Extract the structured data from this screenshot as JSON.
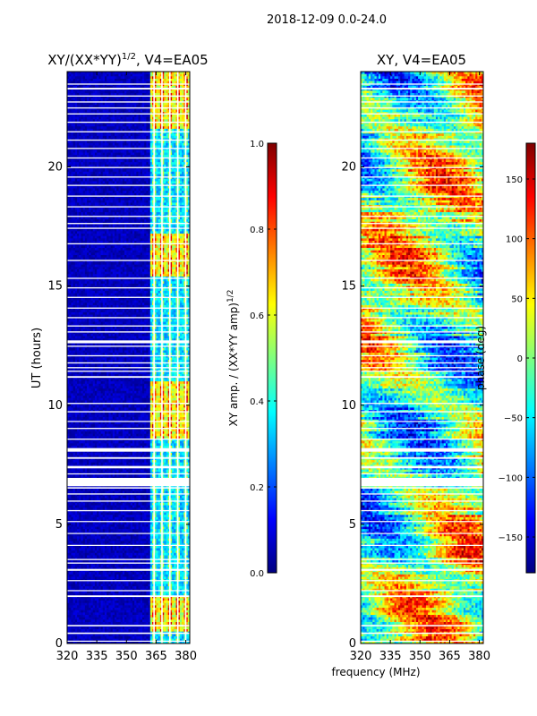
{
  "suptitle": "2018-12-09 0.0-24.0",
  "shared_xlabel": "frequency (MHz)",
  "colors": {
    "jet": [
      "#00007f",
      "#0000ff",
      "#007fff",
      "#00ffff",
      "#7fff7f",
      "#ffff00",
      "#ff7f00",
      "#ff0000",
      "#7f0000"
    ],
    "background": "#ffffff",
    "axis": "#000000"
  },
  "chart_data": [
    {
      "type": "heatmap",
      "title_prefix": "XY/(XX*YY)",
      "title_sup": "1/2",
      "title_suffix": ", V4=EA05",
      "ylabel": "UT (hours)",
      "xlabel": "",
      "xlim": [
        320,
        382
      ],
      "ylim": [
        0,
        24
      ],
      "xticks": [
        "320",
        "335",
        "350",
        "365",
        "380"
      ],
      "xtick_values": [
        320,
        335,
        350,
        365,
        380
      ],
      "yticks": [
        "0",
        "5",
        "10",
        "15",
        "20"
      ],
      "ytick_values": [
        0,
        5,
        10,
        15,
        20
      ],
      "colorbar": {
        "label_prefix": "XY amp. / (XX*YY amp)",
        "label_sup": "1/2",
        "range": [
          0.0,
          1.0
        ],
        "ticks": [
          "0.0",
          "0.2",
          "0.4",
          "0.6",
          "0.8",
          "1.0"
        ],
        "tick_values": [
          0.0,
          0.2,
          0.4,
          0.6,
          0.8,
          1.0
        ]
      },
      "data_notes": "Mostly low amplitude (~0.05) below 360 MHz; 362-381 MHz shows channelized structure ~0.4-0.9, highest near 0.5-2 h, 8.5-11 h, 15.5-17 h, 21.5-24 h"
    },
    {
      "type": "heatmap",
      "title_prefix": "XY, V4=EA05",
      "title_sup": "",
      "title_suffix": "",
      "ylabel": "",
      "xlabel": "",
      "xlim": [
        320,
        382
      ],
      "ylim": [
        0,
        24
      ],
      "xticks": [
        "320",
        "335",
        "350",
        "365",
        "380"
      ],
      "xtick_values": [
        320,
        335,
        350,
        365,
        380
      ],
      "yticks": [
        "0",
        "5",
        "10",
        "15",
        "20"
      ],
      "ytick_values": [
        0,
        5,
        10,
        15,
        20
      ],
      "colorbar": {
        "label_prefix": "phase (deg)",
        "label_sup": "",
        "range": [
          -180,
          180
        ],
        "ticks": [
          "−150",
          "−100",
          "−50",
          "0",
          "50",
          "100",
          "150"
        ],
        "tick_values": [
          -150,
          -100,
          -50,
          0,
          50,
          100,
          150
        ]
      },
      "data_notes": "Phase wraps across full -180..180 deg with banded structure varying in time and frequency"
    }
  ],
  "flag_rows": [
    [
      0.08,
      0.12
    ],
    [
      0.4,
      0.46
    ],
    [
      0.72,
      0.78
    ],
    [
      1.95,
      2.02
    ],
    [
      2.2,
      2.24
    ],
    [
      2.62,
      2.66
    ],
    [
      3.05,
      3.13
    ],
    [
      3.35,
      3.4
    ],
    [
      3.5,
      3.55
    ],
    [
      4.1,
      4.14
    ],
    [
      4.6,
      4.64
    ],
    [
      5.1,
      5.14
    ],
    [
      5.55,
      5.6
    ],
    [
      5.95,
      6.0
    ],
    [
      6.25,
      6.3
    ],
    [
      6.5,
      6.56
    ],
    [
      6.6,
      6.95
    ],
    [
      7.1,
      7.14
    ],
    [
      7.35,
      7.45
    ],
    [
      7.75,
      7.82
    ],
    [
      8.05,
      8.2
    ],
    [
      8.55,
      8.6
    ],
    [
      9.0,
      9.05
    ],
    [
      9.3,
      9.34
    ],
    [
      9.7,
      9.75
    ],
    [
      10.05,
      10.1
    ],
    [
      11.15,
      11.22
    ],
    [
      11.4,
      11.45
    ],
    [
      11.55,
      11.6
    ],
    [
      11.75,
      11.8
    ],
    [
      12.05,
      12.1
    ],
    [
      12.45,
      12.5
    ],
    [
      12.6,
      12.72
    ],
    [
      13.05,
      13.1
    ],
    [
      13.3,
      13.35
    ],
    [
      13.65,
      13.7
    ],
    [
      14.05,
      14.1
    ],
    [
      14.5,
      14.55
    ],
    [
      14.9,
      14.95
    ],
    [
      15.3,
      15.35
    ],
    [
      16.05,
      16.1
    ],
    [
      16.75,
      16.8
    ],
    [
      17.4,
      17.45
    ],
    [
      17.6,
      17.65
    ],
    [
      17.9,
      17.95
    ],
    [
      18.3,
      18.35
    ],
    [
      18.75,
      18.8
    ],
    [
      19.2,
      19.25
    ],
    [
      19.55,
      19.6
    ],
    [
      19.95,
      20.0
    ],
    [
      20.35,
      20.4
    ],
    [
      20.75,
      20.8
    ],
    [
      21.1,
      21.15
    ],
    [
      21.45,
      21.5
    ],
    [
      21.85,
      21.9
    ],
    [
      22.2,
      22.25
    ],
    [
      22.45,
      22.5
    ],
    [
      22.7,
      22.75
    ],
    [
      22.95,
      23.0
    ],
    [
      23.25,
      23.32
    ],
    [
      23.45,
      23.5
    ]
  ],
  "flag_cols": [
    363.6,
    367.6,
    371.6,
    375.6,
    379.6
  ],
  "bright_bands": [
    [
      0.5,
      2.0
    ],
    [
      8.6,
      11.0
    ],
    [
      15.4,
      17.2
    ],
    [
      21.6,
      24.0
    ]
  ]
}
